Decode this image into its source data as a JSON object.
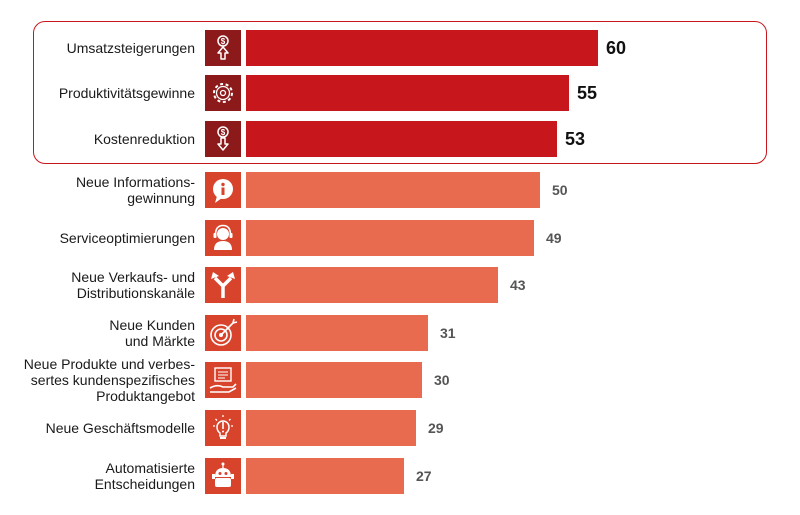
{
  "chart_data": {
    "type": "bar",
    "orientation": "horizontal",
    "highlight_count": 3,
    "colors": {
      "highlight_bar": "#c8161d",
      "highlight_icon": "#8c1a1a",
      "normal_bar": "#e86b50",
      "normal_icon": "#d8432c"
    },
    "categories": [
      "Umsatzsteigerungen",
      "Produktivitätsgewinne",
      "Kostenreduktion",
      "Neue Informations-\ngewinnung",
      "Serviceoptimierungen",
      "Neue Verkaufs- und\nDistributionskanäle",
      "Neue Kunden\nund Märkte",
      "Neue Produkte und verbes-\nsertes kundenspezifisches\nProduktangebot",
      "Neue Geschäftsmodelle",
      "Automatisierte\nEntscheidungen"
    ],
    "values": [
      60,
      55,
      53,
      50,
      49,
      43,
      31,
      30,
      29,
      27
    ],
    "icons": [
      "dollar-up-icon",
      "gear-icon",
      "dollar-down-icon",
      "info-bubble-icon",
      "headset-icon",
      "fork-arrows-icon",
      "target-icon",
      "product-hands-icon",
      "lightbulb-icon",
      "robot-icon"
    ]
  }
}
